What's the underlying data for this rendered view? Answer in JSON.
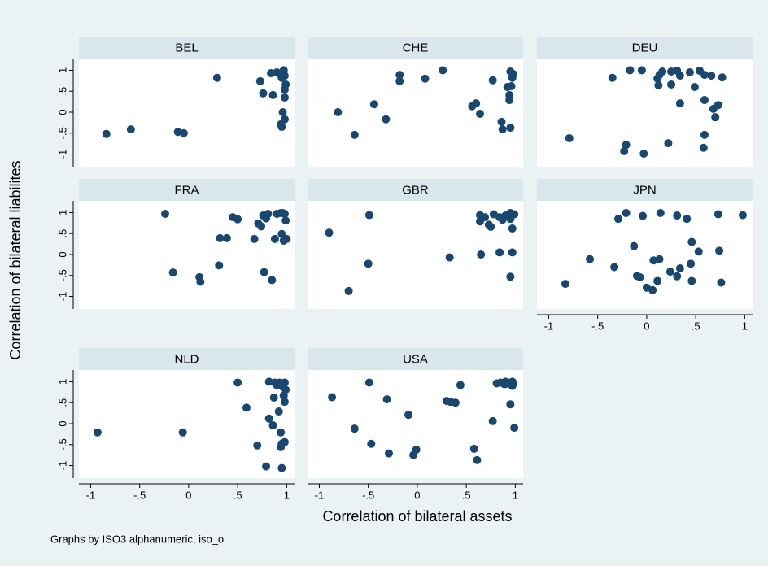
{
  "y_label": "Correlation of bilateral liabilites",
  "x_label": "Correlation of bilateral assets",
  "note": "Graphs by ISO3 alphanumeric, iso_o",
  "chart_data": [
    {
      "type": "scatter",
      "title": "BEL",
      "color": "#1a476f",
      "xlim": [
        -1.12,
        1.08
      ],
      "ylim": [
        -1.3,
        1.28
      ],
      "yticks": [
        -1,
        {
          "value": -0.5,
          "label": "-.5"
        },
        0,
        {
          "value": 0.5,
          "label": ".5"
        },
        1
      ],
      "x": [
        -0.84,
        -0.59,
        -0.11,
        -0.05,
        0.29,
        0.73,
        0.76,
        0.84,
        0.86,
        0.9,
        0.93,
        0.95,
        0.97,
        0.98,
        0.99,
        0.98,
        0.98,
        0.96,
        0.98,
        0.95,
        0.94
      ],
      "y": [
        -0.52,
        -0.41,
        -0.47,
        -0.5,
        0.82,
        0.74,
        0.45,
        0.93,
        0.41,
        0.95,
        0.91,
        0.82,
        1.0,
        0.87,
        0.66,
        0.54,
        0.35,
        0.0,
        -0.17,
        -0.35,
        -0.29
      ]
    },
    {
      "type": "scatter",
      "title": "CHE",
      "color": "#1a476f",
      "xlim": [
        -1.12,
        1.08
      ],
      "ylim": [
        -1.3,
        1.28
      ],
      "x": [
        -0.81,
        -0.64,
        -0.44,
        -0.32,
        -0.18,
        -0.18,
        0.08,
        0.26,
        0.56,
        0.6,
        0.64,
        0.77,
        0.86,
        0.87,
        0.92,
        0.95,
        0.95,
        0.94,
        0.94,
        0.96,
        0.98,
        0.97
      ],
      "y": [
        0.0,
        -0.54,
        0.19,
        -0.17,
        0.89,
        0.74,
        0.8,
        1.0,
        0.14,
        0.21,
        -0.04,
        0.76,
        -0.23,
        -0.41,
        0.6,
        0.97,
        -0.37,
        0.41,
        0.29,
        0.62,
        0.91,
        0.82
      ]
    },
    {
      "type": "scatter",
      "title": "DEU",
      "color": "#1a476f",
      "xlim": [
        -1.12,
        1.08
      ],
      "ylim": [
        -1.3,
        1.28
      ],
      "x": [
        -0.79,
        -0.35,
        -0.21,
        -0.23,
        -0.17,
        -0.05,
        -0.03,
        0.11,
        0.13,
        0.12,
        0.16,
        0.22,
        0.25,
        0.25,
        0.31,
        0.34,
        0.34,
        0.44,
        0.49,
        0.54,
        0.59,
        0.59,
        0.58,
        0.59,
        0.66,
        0.68,
        0.7,
        0.73,
        0.77
      ],
      "y": [
        -0.62,
        0.82,
        -0.78,
        -0.93,
        1.0,
        1.0,
        -0.99,
        0.8,
        0.89,
        0.64,
        0.97,
        -0.74,
        0.66,
        0.97,
        0.99,
        0.87,
        0.21,
        0.95,
        0.6,
        0.99,
        0.89,
        -0.54,
        -0.85,
        0.29,
        0.87,
        0.08,
        -0.12,
        0.17,
        0.83
      ]
    },
    {
      "type": "scatter",
      "title": "FRA",
      "color": "#1a476f",
      "xlim": [
        -1.12,
        1.08
      ],
      "ylim": [
        -1.3,
        1.28
      ],
      "yticks": [
        -1,
        {
          "value": -0.5,
          "label": "-.5"
        },
        0,
        {
          "value": 0.5,
          "label": ".5"
        },
        1
      ],
      "x": [
        -0.24,
        -0.16,
        0.11,
        0.12,
        0.31,
        0.32,
        0.39,
        0.45,
        0.5,
        0.67,
        0.71,
        0.74,
        0.76,
        0.79,
        0.81,
        0.77,
        0.85,
        0.88,
        0.9,
        0.94,
        0.95,
        0.97,
        0.98,
        0.99,
        1.0,
        0.96
      ],
      "y": [
        0.97,
        -0.43,
        -0.54,
        -0.65,
        -0.26,
        0.39,
        0.39,
        0.89,
        0.84,
        0.37,
        0.74,
        0.67,
        0.93,
        0.86,
        0.97,
        -0.42,
        -0.61,
        0.37,
        0.97,
        0.99,
        0.49,
        0.33,
        0.97,
        0.81,
        0.37,
        0.99
      ]
    },
    {
      "type": "scatter",
      "title": "GBR",
      "color": "#1a476f",
      "xlim": [
        -1.12,
        1.08
      ],
      "ylim": [
        -1.3,
        1.28
      ],
      "x": [
        -0.9,
        -0.7,
        -0.49,
        -0.5,
        0.33,
        0.64,
        0.64,
        0.65,
        0.69,
        0.73,
        0.75,
        0.78,
        0.84,
        0.84,
        0.87,
        0.9,
        0.94,
        0.95,
        0.95,
        0.97,
        0.97,
        0.99,
        0.95
      ],
      "y": [
        0.52,
        -0.87,
        0.94,
        -0.22,
        -0.07,
        0.94,
        0.79,
        0.0,
        0.89,
        0.71,
        0.66,
        0.96,
        0.89,
        0.05,
        0.83,
        0.93,
        0.91,
        0.85,
        -0.53,
        0.62,
        0.05,
        0.96,
        0.99
      ]
    },
    {
      "type": "scatter",
      "title": "JPN",
      "color": "#1a476f",
      "xlim": [
        -1.12,
        1.08
      ],
      "ylim": [
        -1.3,
        1.28
      ],
      "xticks": [
        -1,
        {
          "value": -0.5,
          "label": "-.5"
        },
        0,
        {
          "value": 0.5,
          "label": ".5"
        },
        1
      ],
      "x": [
        -0.83,
        -0.58,
        -0.33,
        -0.29,
        -0.21,
        -0.13,
        -0.1,
        -0.07,
        -0.04,
        0.0,
        0.06,
        0.07,
        0.11,
        0.13,
        0.14,
        0.24,
        0.31,
        0.31,
        0.34,
        0.41,
        0.45,
        0.46,
        0.46,
        0.53,
        0.73,
        0.74,
        0.76,
        0.98
      ],
      "y": [
        -0.7,
        -0.11,
        -0.3,
        0.85,
        0.99,
        0.2,
        -0.51,
        -0.54,
        0.92,
        -0.79,
        -0.85,
        -0.14,
        -0.63,
        -0.11,
        0.99,
        -0.41,
        0.93,
        -0.52,
        -0.33,
        0.85,
        -0.22,
        0.3,
        -0.63,
        0.07,
        0.96,
        0.09,
        -0.67,
        0.94
      ]
    },
    {
      "type": "scatter",
      "title": "NLD",
      "color": "#1a476f",
      "xlim": [
        -1.12,
        1.08
      ],
      "ylim": [
        -1.3,
        1.28
      ],
      "xticks": [
        -1,
        {
          "value": -0.5,
          "label": "-.5"
        },
        0,
        {
          "value": 0.5,
          "label": ".5"
        },
        1
      ],
      "yticks": [
        -1,
        {
          "value": -0.5,
          "label": "-.5"
        },
        0,
        {
          "value": 0.5,
          "label": ".5"
        },
        1
      ],
      "x": [
        -0.93,
        -0.06,
        0.5,
        0.59,
        0.7,
        0.79,
        0.82,
        0.82,
        0.86,
        0.87,
        0.88,
        0.9,
        0.92,
        0.94,
        0.94,
        0.93,
        0.95,
        0.95,
        0.96,
        0.98,
        0.98,
        0.98,
        0.99,
        0.95,
        0.97
      ],
      "y": [
        -0.21,
        -0.21,
        0.98,
        0.38,
        -0.52,
        -1.02,
        1.0,
        0.12,
        -0.04,
        0.62,
        0.98,
        0.92,
        0.29,
        -0.21,
        -0.56,
        0.98,
        -1.06,
        -0.48,
        0.88,
        0.98,
        0.52,
        -0.44,
        0.81,
        0.96,
        0.67
      ]
    },
    {
      "type": "scatter",
      "title": "USA",
      "color": "#1a476f",
      "xlim": [
        -1.12,
        1.08
      ],
      "ylim": [
        -1.3,
        1.28
      ],
      "xticks": [
        -1,
        {
          "value": -0.5,
          "label": "-.5"
        },
        0,
        {
          "value": 0.5,
          "label": ".5"
        },
        1
      ],
      "x": [
        -0.87,
        -0.64,
        -0.49,
        -0.47,
        -0.31,
        -0.29,
        -0.09,
        -0.04,
        -0.01,
        0.3,
        0.34,
        0.39,
        0.44,
        0.58,
        0.61,
        0.77,
        0.81,
        0.85,
        0.89,
        0.9,
        0.92,
        0.95,
        0.97,
        0.98,
        0.97,
        0.99,
        0.95
      ],
      "y": [
        0.63,
        -0.12,
        0.98,
        -0.48,
        0.58,
        -0.71,
        0.21,
        -0.75,
        -0.62,
        0.54,
        0.52,
        0.5,
        0.92,
        -0.6,
        -0.87,
        0.06,
        0.96,
        0.98,
        0.94,
        1.0,
        0.96,
        0.46,
        1.0,
        0.96,
        0.9,
        -0.1,
        0.98
      ]
    }
  ]
}
